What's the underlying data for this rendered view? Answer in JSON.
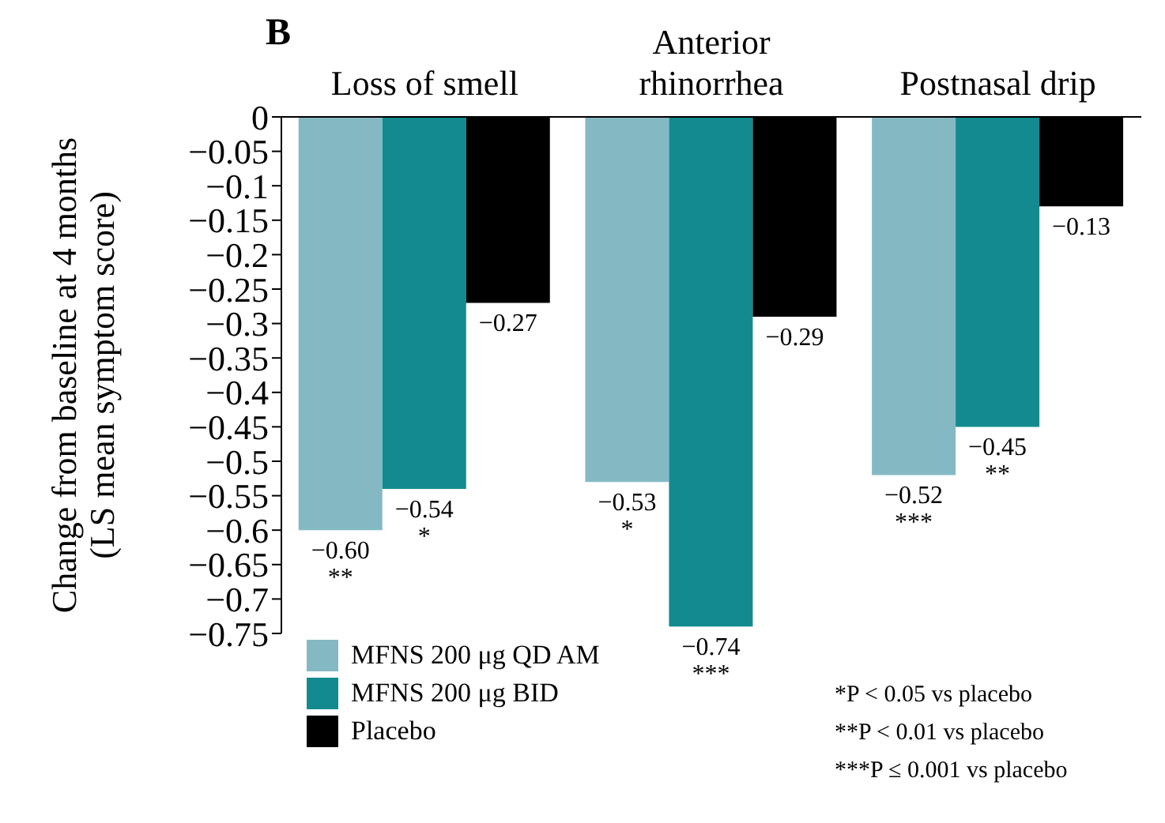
{
  "chart_data": {
    "type": "bar",
    "title": "B",
    "ylabel": "Change from baseline at 4 months\n(LS mean symptom score)",
    "categories": [
      "Loss of smell",
      "Anterior\nrhinorrhea",
      "Postnasal drip"
    ],
    "series": [
      {
        "name": "MFNS 200 μg QD AM",
        "color": "#84b9c4",
        "values": [
          -0.6,
          -0.53,
          -0.52
        ],
        "value_labels": [
          "−0.60\n**",
          "−0.53\n*",
          "−0.52\n***"
        ]
      },
      {
        "name": "MFNS 200 μg BID",
        "color": "#138a90",
        "values": [
          -0.54,
          -0.74,
          -0.45
        ],
        "value_labels": [
          "−0.54\n*",
          "−0.74\n***",
          "−0.45\n**"
        ]
      },
      {
        "name": "Placebo",
        "color": "#000000",
        "values": [
          -0.27,
          -0.29,
          -0.13
        ],
        "value_labels": [
          "−0.27",
          "−0.29",
          "−0.13"
        ]
      }
    ],
    "ylim": [
      -0.75,
      0
    ],
    "yticks": [
      0,
      -0.05,
      -0.1,
      -0.15,
      -0.2,
      -0.25,
      -0.3,
      -0.35,
      -0.4,
      -0.45,
      -0.5,
      -0.55,
      -0.6,
      -0.65,
      -0.7,
      -0.75
    ],
    "grid": false,
    "legend": "bottom left",
    "annotations": [
      "*P < 0.05 vs placebo",
      "**P < 0.01 vs placebo",
      "***P ≤ 0.001 vs placebo"
    ]
  }
}
